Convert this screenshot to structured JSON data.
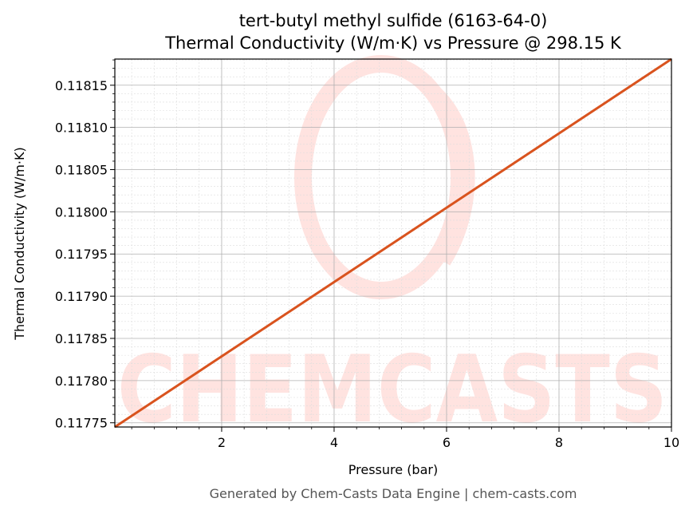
{
  "footer": "Generated by Chem-Casts Data Engine | chem-casts.com",
  "watermark": {
    "text": "CHEMCASTS",
    "color": "#ffe3e0"
  },
  "colors": {
    "line": "#d9531e",
    "major_grid": "#b0b0b0",
    "minor_grid": "#dddddd",
    "axes": "#000000"
  },
  "chart_data": {
    "type": "line",
    "title": "tert-butyl methyl sulfide (6163-64-0)",
    "subtitle": "Thermal Conductivity (W/m·K) vs Pressure @ 298.15 K",
    "xlabel": "Pressure (bar)",
    "ylabel": "Thermal Conductivity (W/m·K)",
    "xlim": [
      0.1,
      10
    ],
    "ylim": [
      0.117745,
      0.118181
    ],
    "x_ticks": [
      2,
      4,
      6,
      8,
      10
    ],
    "x_tick_labels": [
      "2",
      "4",
      "6",
      "8",
      "10"
    ],
    "y_ticks": [
      0.11775,
      0.1178,
      0.11785,
      0.1179,
      0.11795,
      0.118,
      0.11805,
      0.1181,
      0.11815
    ],
    "y_tick_labels": [
      "0.11775",
      "0.11780",
      "0.11785",
      "0.11790",
      "0.11795",
      "0.11800",
      "0.11805",
      "0.11810",
      "0.11815"
    ],
    "grid": true,
    "minor_grid": true,
    "series": [
      {
        "x": [
          0.1,
          10
        ],
        "y": [
          0.117745,
          0.118181
        ],
        "color": "#d9531e"
      }
    ]
  }
}
